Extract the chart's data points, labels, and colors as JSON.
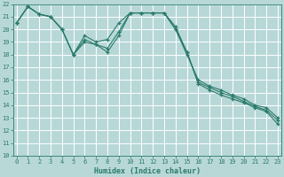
{
  "xlabel": "Humidex (Indice chaleur)",
  "xlim": [
    0,
    23
  ],
  "ylim": [
    10,
    22
  ],
  "yticks": [
    10,
    11,
    12,
    13,
    14,
    15,
    16,
    17,
    18,
    19,
    20,
    21,
    22
  ],
  "xticks": [
    0,
    1,
    2,
    3,
    4,
    5,
    6,
    7,
    8,
    9,
    10,
    11,
    12,
    13,
    14,
    15,
    16,
    17,
    18,
    19,
    20,
    21,
    22,
    23
  ],
  "background_color": "#b8d8d8",
  "grid_color": "#ffffff",
  "line_color": "#2a7a6a",
  "series": [
    [
      20.5,
      21.8,
      21.2,
      21.0,
      20.0,
      18.0,
      19.5,
      19.0,
      19.2,
      20.5,
      21.3,
      21.3,
      21.3,
      21.3,
      20.2,
      18.2,
      15.7,
      15.2,
      14.8,
      14.5,
      14.2,
      13.8,
      13.5,
      12.5
    ],
    [
      20.5,
      21.8,
      21.2,
      21.0,
      20.0,
      18.0,
      19.2,
      18.8,
      18.5,
      19.8,
      21.3,
      21.3,
      21.3,
      21.3,
      20.0,
      18.2,
      15.8,
      15.4,
      15.0,
      14.7,
      14.3,
      13.9,
      13.6,
      12.8
    ],
    [
      20.5,
      21.8,
      21.2,
      21.0,
      20.0,
      18.0,
      19.0,
      18.8,
      18.2,
      19.5,
      21.3,
      21.3,
      21.3,
      21.3,
      20.0,
      18.0,
      16.0,
      15.5,
      15.2,
      14.8,
      14.5,
      14.0,
      13.8,
      13.0
    ]
  ],
  "series_line": [
    [
      20.5,
      21.8,
      21.2,
      21.0,
      20.0,
      18.0,
      19.5,
      19.0,
      19.2,
      20.5,
      21.3,
      21.3,
      21.3,
      21.3,
      20.2,
      18.2,
      15.7,
      15.2,
      14.8,
      14.5,
      14.2,
      13.8,
      13.5,
      12.5
    ],
    [
      20.5,
      21.8,
      21.2,
      21.0,
      20.0,
      18.0,
      19.2,
      18.8,
      18.5,
      19.8,
      21.3,
      21.3,
      21.3,
      21.3,
      20.0,
      18.2,
      15.8,
      15.4,
      15.0,
      14.7,
      14.3,
      13.9,
      13.6,
      12.8
    ],
    [
      20.5,
      21.8,
      21.2,
      21.0,
      20.0,
      18.0,
      19.0,
      18.8,
      18.2,
      19.5,
      21.3,
      21.3,
      21.3,
      21.3,
      20.0,
      18.0,
      16.0,
      15.5,
      15.2,
      14.8,
      14.5,
      14.0,
      13.8,
      13.0
    ]
  ]
}
